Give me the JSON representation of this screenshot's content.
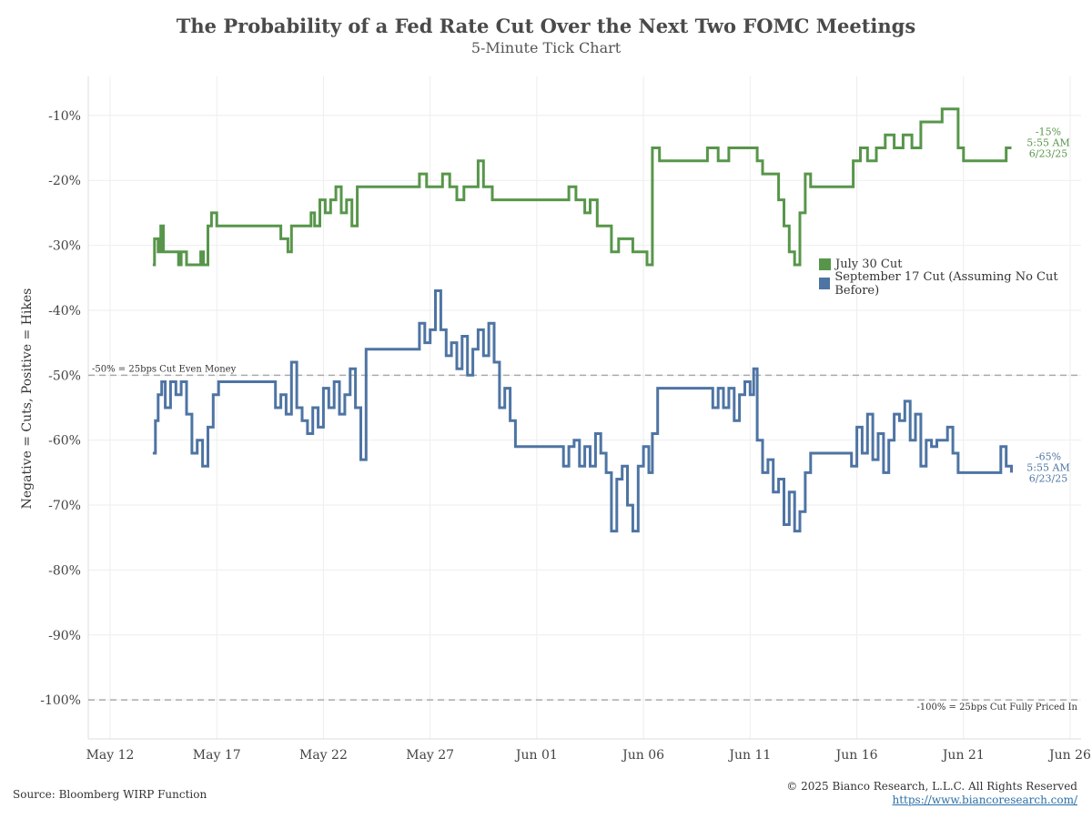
{
  "header": {
    "title": "The Probability of a Fed Rate Cut Over the Next Two FOMC Meetings",
    "subtitle": "5-Minute Tick Chart"
  },
  "footer": {
    "source": "Source: Bloomberg WIRP Function",
    "copyright": "© 2025 Bianco Research, L.L.C. All Rights Reserved",
    "link": "https://www.biancoresearch.com/"
  },
  "colors": {
    "july": "#57964a",
    "september": "#4e74a3",
    "refline": "#aaaaaa",
    "grid": "#eeeeee"
  },
  "chart_data": {
    "type": "line",
    "title": "The Probability of a Fed Rate Cut Over the Next Two FOMC Meetings",
    "subtitle": "5-Minute Tick Chart",
    "ylabel": "Negative = Cuts, Positive = Hikes",
    "xlabel": "",
    "ylim": [
      -106,
      -4
    ],
    "xlim": [
      "2025-05-12",
      "2025-06-26"
    ],
    "y_ticks": [
      -10,
      -20,
      -30,
      -40,
      -50,
      -60,
      -70,
      -80,
      -90,
      -100
    ],
    "y_tick_labels": [
      "-10%",
      "-20%",
      "-30%",
      "-40%",
      "-50%",
      "-60%",
      "-70%",
      "-80%",
      "-90%",
      "-100%"
    ],
    "x_ticks": [
      "2025-05-12",
      "2025-05-17",
      "2025-05-22",
      "2025-05-27",
      "2025-06-01",
      "2025-06-06",
      "2025-06-11",
      "2025-06-16",
      "2025-06-21",
      "2025-06-26"
    ],
    "x_tick_labels": [
      "May 12",
      "May 17",
      "May 22",
      "May 27",
      "Jun 01",
      "Jun 06",
      "Jun 11",
      "Jun 16",
      "Jun 21",
      "Jun 26"
    ],
    "grid": true,
    "legend_position": "right",
    "reference_lines": [
      {
        "y": -50,
        "label": "-50% = 25bps Cut Even Money"
      },
      {
        "y": -100,
        "label": "-100% = 25bps Cut Fully Priced In"
      }
    ],
    "series": [
      {
        "name": "July 30 Cut",
        "color": "#57964a",
        "end_annotation": [
          "-15%",
          "5:55 AM",
          "6/23/25"
        ],
        "points": [
          [
            "2025-05-14 00:00",
            -33
          ],
          [
            "2025-05-14 02:00",
            -29
          ],
          [
            "2025-05-14 06:00",
            -31
          ],
          [
            "2025-05-14 09:00",
            -27
          ],
          [
            "2025-05-14 12:00",
            -31
          ],
          [
            "2025-05-15 00:00",
            -31
          ],
          [
            "2025-05-15 05:00",
            -33
          ],
          [
            "2025-05-15 08:00",
            -31
          ],
          [
            "2025-05-15 14:00",
            -33
          ],
          [
            "2025-05-16 00:00",
            -33
          ],
          [
            "2025-05-16 06:00",
            -31
          ],
          [
            "2025-05-16 09:00",
            -33
          ],
          [
            "2025-05-16 14:00",
            -27
          ],
          [
            "2025-05-16 18:00",
            -25
          ],
          [
            "2025-05-17 00:00",
            -27
          ],
          [
            "2025-05-18 00:00",
            -27
          ],
          [
            "2025-05-19 00:00",
            -27
          ],
          [
            "2025-05-19 14:00",
            -27
          ],
          [
            "2025-05-20 00:00",
            -29
          ],
          [
            "2025-05-20 08:00",
            -31
          ],
          [
            "2025-05-20 12:00",
            -27
          ],
          [
            "2025-05-21 00:00",
            -27
          ],
          [
            "2025-05-21 10:00",
            -25
          ],
          [
            "2025-05-21 14:00",
            -27
          ],
          [
            "2025-05-21 20:00",
            -23
          ],
          [
            "2025-05-22 02:00",
            -25
          ],
          [
            "2025-05-22 08:00",
            -23
          ],
          [
            "2025-05-22 14:00",
            -21
          ],
          [
            "2025-05-22 20:00",
            -25
          ],
          [
            "2025-05-23 02:00",
            -23
          ],
          [
            "2025-05-23 08:00",
            -27
          ],
          [
            "2025-05-23 14:00",
            -21
          ],
          [
            "2025-05-24 00:00",
            -21
          ],
          [
            "2025-05-25 00:00",
            -21
          ],
          [
            "2025-05-26 00:00",
            -21
          ],
          [
            "2025-05-26 12:00",
            -19
          ],
          [
            "2025-05-26 20:00",
            -21
          ],
          [
            "2025-05-27 08:00",
            -21
          ],
          [
            "2025-05-27 14:00",
            -19
          ],
          [
            "2025-05-27 22:00",
            -21
          ],
          [
            "2025-05-28 06:00",
            -23
          ],
          [
            "2025-05-28 14:00",
            -21
          ],
          [
            "2025-05-29 00:00",
            -21
          ],
          [
            "2025-05-29 06:00",
            -17
          ],
          [
            "2025-05-29 12:00",
            -21
          ],
          [
            "2025-05-29 22:00",
            -23
          ],
          [
            "2025-05-30 12:00",
            -23
          ],
          [
            "2025-05-31 00:00",
            -23
          ],
          [
            "2025-06-01 00:00",
            -23
          ],
          [
            "2025-06-01 12:00",
            -23
          ],
          [
            "2025-06-02 00:00",
            -23
          ],
          [
            "2025-06-02 12:00",
            -21
          ],
          [
            "2025-06-02 20:00",
            -23
          ],
          [
            "2025-06-03 06:00",
            -25
          ],
          [
            "2025-06-03 12:00",
            -23
          ],
          [
            "2025-06-03 20:00",
            -27
          ],
          [
            "2025-06-04 06:00",
            -27
          ],
          [
            "2025-06-04 12:00",
            -31
          ],
          [
            "2025-06-04 20:00",
            -29
          ],
          [
            "2025-06-05 06:00",
            -29
          ],
          [
            "2025-06-05 12:00",
            -31
          ],
          [
            "2025-06-05 22:00",
            -31
          ],
          [
            "2025-06-06 04:00",
            -33
          ],
          [
            "2025-06-06 10:00",
            -15
          ],
          [
            "2025-06-06 18:00",
            -17
          ],
          [
            "2025-06-07 00:00",
            -17
          ],
          [
            "2025-06-08 00:00",
            -17
          ],
          [
            "2025-06-08 12:00",
            -17
          ],
          [
            "2025-06-09 00:00",
            -15
          ],
          [
            "2025-06-09 12:00",
            -17
          ],
          [
            "2025-06-10 00:00",
            -15
          ],
          [
            "2025-06-10 12:00",
            -15
          ],
          [
            "2025-06-11 00:00",
            -15
          ],
          [
            "2025-06-11 08:00",
            -17
          ],
          [
            "2025-06-11 14:00",
            -19
          ],
          [
            "2025-06-12 00:00",
            -19
          ],
          [
            "2025-06-12 08:00",
            -23
          ],
          [
            "2025-06-12 14:00",
            -27
          ],
          [
            "2025-06-12 20:00",
            -31
          ],
          [
            "2025-06-13 02:00",
            -33
          ],
          [
            "2025-06-13 08:00",
            -25
          ],
          [
            "2025-06-13 14:00",
            -19
          ],
          [
            "2025-06-13 20:00",
            -21
          ],
          [
            "2025-06-14 00:00",
            -21
          ],
          [
            "2025-06-15 00:00",
            -21
          ],
          [
            "2025-06-15 12:00",
            -21
          ],
          [
            "2025-06-15 20:00",
            -17
          ],
          [
            "2025-06-16 04:00",
            -15
          ],
          [
            "2025-06-16 12:00",
            -17
          ],
          [
            "2025-06-16 22:00",
            -15
          ],
          [
            "2025-06-17 08:00",
            -13
          ],
          [
            "2025-06-17 18:00",
            -15
          ],
          [
            "2025-06-18 04:00",
            -13
          ],
          [
            "2025-06-18 14:00",
            -15
          ],
          [
            "2025-06-19 00:00",
            -11
          ],
          [
            "2025-06-19 12:00",
            -11
          ],
          [
            "2025-06-20 00:00",
            -9
          ],
          [
            "2025-06-20 12:00",
            -9
          ],
          [
            "2025-06-20 18:00",
            -15
          ],
          [
            "2025-06-21 00:00",
            -17
          ],
          [
            "2025-06-22 00:00",
            -17
          ],
          [
            "2025-06-22 18:00",
            -17
          ],
          [
            "2025-06-23 00:00",
            -15
          ],
          [
            "2025-06-23 06:00",
            -15
          ]
        ]
      },
      {
        "name": "September 17 Cut (Assuming No Cut Before)",
        "color": "#4e74a3",
        "end_annotation": [
          "-65%",
          "5:55 AM",
          "6/23/25"
        ],
        "points": [
          [
            "2025-05-14 00:00",
            -62
          ],
          [
            "2025-05-14 03:00",
            -57
          ],
          [
            "2025-05-14 06:00",
            -53
          ],
          [
            "2025-05-14 10:00",
            -51
          ],
          [
            "2025-05-14 14:00",
            -55
          ],
          [
            "2025-05-14 20:00",
            -51
          ],
          [
            "2025-05-15 02:00",
            -53
          ],
          [
            "2025-05-15 08:00",
            -51
          ],
          [
            "2025-05-15 14:00",
            -56
          ],
          [
            "2025-05-15 20:00",
            -62
          ],
          [
            "2025-05-16 02:00",
            -60
          ],
          [
            "2025-05-16 08:00",
            -64
          ],
          [
            "2025-05-16 14:00",
            -58
          ],
          [
            "2025-05-16 20:00",
            -53
          ],
          [
            "2025-05-17 02:00",
            -51
          ],
          [
            "2025-05-17 12:00",
            -51
          ],
          [
            "2025-05-18 00:00",
            -51
          ],
          [
            "2025-05-19 00:00",
            -51
          ],
          [
            "2025-05-19 12:00",
            -51
          ],
          [
            "2025-05-19 18:00",
            -55
          ],
          [
            "2025-05-20 00:00",
            -53
          ],
          [
            "2025-05-20 06:00",
            -56
          ],
          [
            "2025-05-20 12:00",
            -48
          ],
          [
            "2025-05-20 18:00",
            -55
          ],
          [
            "2025-05-21 00:00",
            -57
          ],
          [
            "2025-05-21 06:00",
            -59
          ],
          [
            "2025-05-21 12:00",
            -55
          ],
          [
            "2025-05-21 18:00",
            -58
          ],
          [
            "2025-05-22 00:00",
            -52
          ],
          [
            "2025-05-22 06:00",
            -55
          ],
          [
            "2025-05-22 12:00",
            -51
          ],
          [
            "2025-05-22 18:00",
            -56
          ],
          [
            "2025-05-23 00:00",
            -53
          ],
          [
            "2025-05-23 06:00",
            -49
          ],
          [
            "2025-05-23 12:00",
            -55
          ],
          [
            "2025-05-23 18:00",
            -63
          ],
          [
            "2025-05-24 00:00",
            -46
          ],
          [
            "2025-05-24 06:00",
            -46
          ],
          [
            "2025-05-25 00:00",
            -46
          ],
          [
            "2025-05-26 00:00",
            -46
          ],
          [
            "2025-05-26 06:00",
            -46
          ],
          [
            "2025-05-26 12:00",
            -42
          ],
          [
            "2025-05-26 18:00",
            -45
          ],
          [
            "2025-05-27 00:00",
            -43
          ],
          [
            "2025-05-27 06:00",
            -37
          ],
          [
            "2025-05-27 12:00",
            -43
          ],
          [
            "2025-05-27 18:00",
            -47
          ],
          [
            "2025-05-28 00:00",
            -45
          ],
          [
            "2025-05-28 06:00",
            -49
          ],
          [
            "2025-05-28 12:00",
            -44
          ],
          [
            "2025-05-28 18:00",
            -50
          ],
          [
            "2025-05-29 00:00",
            -46
          ],
          [
            "2025-05-29 06:00",
            -43
          ],
          [
            "2025-05-29 12:00",
            -47
          ],
          [
            "2025-05-29 18:00",
            -42
          ],
          [
            "2025-05-30 00:00",
            -48
          ],
          [
            "2025-05-30 06:00",
            -55
          ],
          [
            "2025-05-30 12:00",
            -52
          ],
          [
            "2025-05-30 18:00",
            -57
          ],
          [
            "2025-05-31 00:00",
            -61
          ],
          [
            "2025-06-01 00:00",
            -61
          ],
          [
            "2025-06-02 00:00",
            -61
          ],
          [
            "2025-06-02 06:00",
            -64
          ],
          [
            "2025-06-02 12:00",
            -61
          ],
          [
            "2025-06-02 18:00",
            -60
          ],
          [
            "2025-06-03 00:00",
            -64
          ],
          [
            "2025-06-03 06:00",
            -61
          ],
          [
            "2025-06-03 12:00",
            -64
          ],
          [
            "2025-06-03 18:00",
            -59
          ],
          [
            "2025-06-04 00:00",
            -62
          ],
          [
            "2025-06-04 06:00",
            -65
          ],
          [
            "2025-06-04 12:00",
            -74
          ],
          [
            "2025-06-04 18:00",
            -66
          ],
          [
            "2025-06-05 00:00",
            -64
          ],
          [
            "2025-06-05 06:00",
            -70
          ],
          [
            "2025-06-05 12:00",
            -74
          ],
          [
            "2025-06-05 18:00",
            -64
          ],
          [
            "2025-06-06 00:00",
            -61
          ],
          [
            "2025-06-06 06:00",
            -65
          ],
          [
            "2025-06-06 10:00",
            -59
          ],
          [
            "2025-06-06 16:00",
            -52
          ],
          [
            "2025-06-07 00:00",
            -52
          ],
          [
            "2025-06-08 00:00",
            -52
          ],
          [
            "2025-06-09 00:00",
            -52
          ],
          [
            "2025-06-09 06:00",
            -55
          ],
          [
            "2025-06-09 12:00",
            -52
          ],
          [
            "2025-06-09 18:00",
            -55
          ],
          [
            "2025-06-10 00:00",
            -52
          ],
          [
            "2025-06-10 06:00",
            -57
          ],
          [
            "2025-06-10 12:00",
            -53
          ],
          [
            "2025-06-10 18:00",
            -51
          ],
          [
            "2025-06-11 00:00",
            -53
          ],
          [
            "2025-06-11 04:00",
            -49
          ],
          [
            "2025-06-11 08:00",
            -60
          ],
          [
            "2025-06-11 14:00",
            -65
          ],
          [
            "2025-06-11 20:00",
            -63
          ],
          [
            "2025-06-12 02:00",
            -68
          ],
          [
            "2025-06-12 08:00",
            -66
          ],
          [
            "2025-06-12 14:00",
            -73
          ],
          [
            "2025-06-12 20:00",
            -68
          ],
          [
            "2025-06-13 02:00",
            -74
          ],
          [
            "2025-06-13 08:00",
            -71
          ],
          [
            "2025-06-13 14:00",
            -65
          ],
          [
            "2025-06-13 20:00",
            -62
          ],
          [
            "2025-06-14 00:00",
            -62
          ],
          [
            "2025-06-15 00:00",
            -62
          ],
          [
            "2025-06-15 12:00",
            -62
          ],
          [
            "2025-06-15 18:00",
            -64
          ],
          [
            "2025-06-16 00:00",
            -58
          ],
          [
            "2025-06-16 06:00",
            -62
          ],
          [
            "2025-06-16 12:00",
            -56
          ],
          [
            "2025-06-16 18:00",
            -63
          ],
          [
            "2025-06-17 00:00",
            -59
          ],
          [
            "2025-06-17 06:00",
            -65
          ],
          [
            "2025-06-17 12:00",
            -60
          ],
          [
            "2025-06-17 18:00",
            -56
          ],
          [
            "2025-06-18 00:00",
            -57
          ],
          [
            "2025-06-18 06:00",
            -54
          ],
          [
            "2025-06-18 12:00",
            -60
          ],
          [
            "2025-06-18 18:00",
            -56
          ],
          [
            "2025-06-19 00:00",
            -64
          ],
          [
            "2025-06-19 06:00",
            -60
          ],
          [
            "2025-06-19 12:00",
            -61
          ],
          [
            "2025-06-19 18:00",
            -60
          ],
          [
            "2025-06-20 00:00",
            -60
          ],
          [
            "2025-06-20 06:00",
            -58
          ],
          [
            "2025-06-20 12:00",
            -62
          ],
          [
            "2025-06-20 18:00",
            -65
          ],
          [
            "2025-06-21 00:00",
            -65
          ],
          [
            "2025-06-22 00:00",
            -65
          ],
          [
            "2025-06-22 12:00",
            -65
          ],
          [
            "2025-06-22 18:00",
            -61
          ],
          [
            "2025-06-23 00:00",
            -64
          ],
          [
            "2025-06-23 06:00",
            -65
          ]
        ]
      }
    ]
  }
}
